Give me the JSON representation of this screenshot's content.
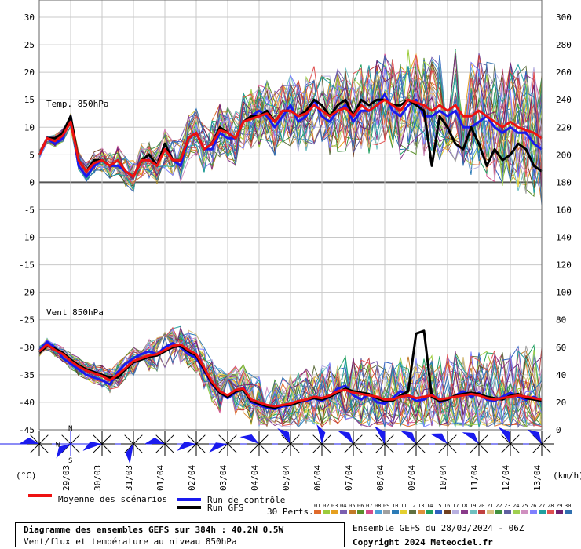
{
  "chart_data": {
    "type": "line",
    "panels": [
      {
        "name": "temperature",
        "label": "Temp. 850hPa",
        "left_axis_unit": "(°C)",
        "left_ticks": [
          30,
          25,
          20,
          15,
          10,
          5,
          0,
          -5,
          -10,
          -15,
          -20,
          -25,
          -30,
          -35,
          -40,
          -45
        ],
        "ylim": [
          -45,
          30
        ],
        "series": [
          {
            "role": "mean",
            "x_days": [
              0,
              0.25,
              0.5,
              0.75,
              1,
              1.25,
              1.5,
              1.75,
              2,
              2.25,
              2.5,
              2.75,
              3,
              3.25,
              3.5,
              3.75,
              4,
              4.25,
              4.5,
              4.75,
              5,
              5.25,
              5.5,
              5.75,
              6,
              6.25,
              6.5,
              6.75,
              7,
              7.25,
              7.5,
              7.75,
              8,
              8.25,
              8.5,
              8.75,
              9,
              9.25,
              9.5,
              9.75,
              10,
              10.25,
              10.5,
              10.75,
              11,
              11.25,
              11.5,
              11.75,
              12,
              12.25,
              12.5,
              12.75,
              13,
              13.25,
              13.5,
              13.75,
              14,
              14.25,
              14.5,
              14.75,
              15,
              15.25,
              15.5,
              15.75,
              16
            ],
            "values": [
              5,
              8,
              7.5,
              8.5,
              11,
              4,
              2,
              3.5,
              4,
              3,
              4,
              2,
              1,
              4,
              4,
              3,
              6,
              4,
              4,
              8,
              9,
              6,
              7,
              9.5,
              9,
              8,
              11,
              11.5,
              12,
              12.5,
              11,
              13,
              13,
              12,
              12.5,
              14,
              13,
              12,
              13,
              13.5,
              12,
              14,
              13,
              14,
              15,
              14,
              13,
              15,
              14.5,
              14,
              13,
              14,
              13,
              14,
              12,
              12,
              13,
              12,
              11,
              10,
              11,
              10,
              9.5,
              9,
              8
            ]
          },
          {
            "role": "control",
            "values": [
              5,
              8,
              7,
              8,
              12,
              3,
              1,
              3,
              4,
              3,
              3,
              2,
              1,
              4,
              4,
              3,
              7,
              4,
              3,
              8,
              9,
              6,
              6,
              9,
              8,
              8,
              11,
              12,
              13,
              12,
              10,
              12,
              14,
              11,
              12,
              15,
              12,
              11,
              13,
              14,
              11,
              13,
              13,
              14,
              16,
              13,
              12,
              14,
              15,
              12,
              12,
              13,
              12,
              13,
              10,
              10,
              11,
              12,
              10,
              9,
              10,
              9,
              9,
              7,
              6
            ]
          },
          {
            "role": "gfs",
            "values": [
              5,
              8,
              8,
              9,
              12,
              4,
              2,
              4,
              4,
              3,
              4,
              2,
              1,
              4,
              5,
              3,
              7,
              4,
              4,
              8,
              9,
              6,
              7,
              10,
              9,
              8,
              11,
              12,
              12,
              13,
              11,
              13,
              13,
              12,
              13,
              15,
              14,
              12,
              14,
              15,
              12,
              15,
              14,
              15,
              15,
              14,
              14,
              15,
              14,
              13,
              3,
              12,
              10,
              7,
              6,
              10,
              7,
              3,
              6,
              4,
              5,
              7,
              6,
              3,
              2
            ]
          }
        ]
      },
      {
        "name": "wind",
        "label": "Vent 850hPa",
        "right_axis_unit": "(km/h)",
        "right_ticks": [
          300,
          280,
          260,
          240,
          220,
          200,
          180,
          160,
          140,
          120,
          100,
          80,
          60,
          40,
          20,
          0
        ],
        "series": [
          {
            "role": "mean",
            "values": [
              57,
              62,
              58,
              55,
              50,
              46,
              43,
              41,
              39,
              36,
              40,
              45,
              50,
              52,
              54,
              55,
              58,
              61,
              62,
              58,
              55,
              45,
              35,
              28,
              25,
              29,
              30,
              22,
              20,
              18,
              17,
              18,
              19,
              21,
              22,
              24,
              23,
              25,
              28,
              29,
              27,
              26,
              25,
              24,
              22,
              22,
              24,
              25,
              23,
              24,
              25,
              22,
              23,
              24,
              25,
              26,
              25,
              23,
              22,
              23,
              24,
              25,
              24,
              23,
              22
            ]
          },
          {
            "role": "control",
            "values": [
              58,
              64,
              60,
              52,
              48,
              44,
              40,
              38,
              36,
              33,
              42,
              48,
              52,
              55,
              57,
              55,
              60,
              63,
              60,
              55,
              52,
              43,
              33,
              27,
              23,
              27,
              31,
              20,
              18,
              16,
              15,
              17,
              18,
              20,
              21,
              23,
              21,
              24,
              30,
              32,
              25,
              22,
              26,
              20,
              19,
              23,
              28,
              25,
              21,
              22,
              26,
              20,
              22,
              25,
              28,
              24,
              27,
              22,
              21,
              24,
              27,
              24,
              22,
              24,
              21
            ]
          },
          {
            "role": "gfs",
            "values": [
              56,
              61,
              59,
              56,
              51,
              47,
              44,
              42,
              40,
              38,
              38,
              44,
              49,
              51,
              53,
              54,
              57,
              60,
              61,
              57,
              54,
              44,
              34,
              27,
              24,
              28,
              29,
              21,
              19,
              17,
              16,
              18,
              18,
              20,
              22,
              23,
              22,
              24,
              27,
              30,
              28,
              27,
              26,
              23,
              21,
              21,
              25,
              28,
              70,
              72,
              24,
              21,
              22,
              25,
              26,
              27,
              26,
              24,
              23,
              22,
              25,
              26,
              23,
              22,
              21
            ]
          }
        ]
      }
    ],
    "x_ticks": [
      "29/03",
      "30/03",
      "31/03",
      "01/04",
      "02/04",
      "03/04",
      "04/04",
      "05/04",
      "06/04",
      "07/04",
      "08/04",
      "09/04",
      "10/04",
      "11/04",
      "12/04",
      "13/04"
    ],
    "perturbation_numbers": [
      "01",
      "02",
      "03",
      "04",
      "05",
      "06",
      "07",
      "08",
      "09",
      "10",
      "11",
      "12",
      "13",
      "14",
      "15",
      "16",
      "17",
      "18",
      "19",
      "20",
      "21",
      "22",
      "23",
      "24",
      "25",
      "26",
      "27",
      "28",
      "29",
      "30"
    ],
    "perturbation_colors": [
      "#e06a2b",
      "#9ccc3c",
      "#e6a020",
      "#7b5fb0",
      "#c27a28",
      "#5a8f2a",
      "#d64b8a",
      "#4aa0d8",
      "#a0a0a0",
      "#2c7bb6",
      "#e4d030",
      "#607040",
      "#e0903a",
      "#20a060",
      "#3060c0",
      "#704020",
      "#b8b0e0",
      "#8a3a8a",
      "#70c0c0",
      "#c04040",
      "#d8c080",
      "#409040",
      "#6060a0",
      "#a0d050",
      "#d090c0",
      "#8080ff",
      "#20a0a0",
      "#e05050",
      "#702070",
      "#3070b0"
    ],
    "wind_barbs_dirs_deg": [
      270,
      225,
      250,
      190,
      270,
      250,
      245,
      290,
      320,
      345,
      310,
      330,
      310,
      300,
      305,
      325,
      315
    ]
  },
  "labels": {
    "temp_label": "Temp. 850hPa",
    "wind_label": "Vent 850hPa",
    "left_unit": "(°C)",
    "right_unit": "(km/h)",
    "compass_n": "N",
    "compass_w": "W",
    "compass_s": "S"
  },
  "legend": {
    "mean": "Moyenne des scénarios",
    "control": "Run de contrôle",
    "gfs": "Run GFS",
    "perts": "30 Perts."
  },
  "footer": {
    "title": "Diagramme des ensembles GEFS sur 384h : 40.2N 0.5W",
    "subtitle": "Vent/flux et température au niveau 850hPa",
    "run_info": "Ensemble GEFS du 28/03/2024 - 06Z",
    "copyright": "Copyright 2024 Meteociel.fr"
  },
  "colors": {
    "mean": "#ee1111",
    "control": "#1a1aee",
    "gfs": "#000000",
    "barb": "#1a1aee",
    "grid": "#c8c8c8"
  }
}
